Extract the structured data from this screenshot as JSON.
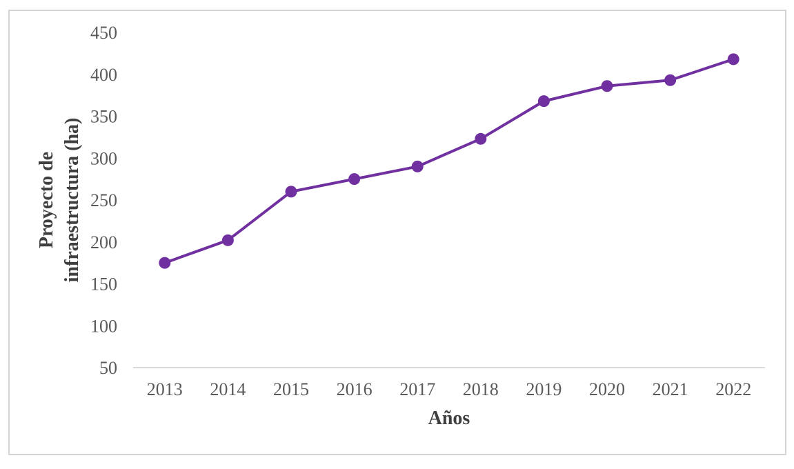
{
  "chart_data": {
    "type": "line",
    "title": "",
    "xlabel": "Años",
    "ylabel": "Proyecto de infraestructura (ha)",
    "ylabel_lines": [
      "Proyecto de",
      "infraestructura (ha)"
    ],
    "categories": [
      "2013",
      "2014",
      "2015",
      "2016",
      "2017",
      "2018",
      "2019",
      "2020",
      "2021",
      "2022"
    ],
    "values": [
      175,
      202,
      260,
      275,
      290,
      323,
      368,
      386,
      393,
      418
    ],
    "ylim": [
      50,
      450
    ],
    "y_ticks": [
      50,
      100,
      150,
      200,
      250,
      300,
      350,
      400,
      450
    ],
    "grid": false,
    "legend": "none",
    "colors": {
      "line": "#7030A0",
      "marker": "#7030A0",
      "axis_line": "#D9D9D9",
      "tick_label": "#595959",
      "axis_title": "#3F3F3F",
      "frame_border": "#D4D4D4",
      "background": "#FFFFFF"
    }
  }
}
